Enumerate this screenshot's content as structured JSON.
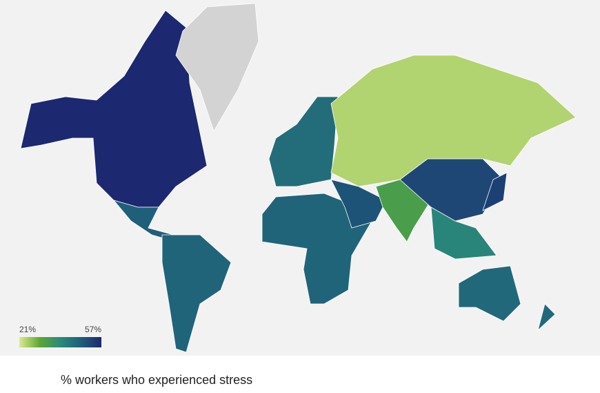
{
  "map": {
    "legend": {
      "min": {
        "value": 21,
        "label": "21%"
      },
      "max": {
        "value": 57,
        "label": "57%"
      },
      "colors": [
        "#dde98f",
        "#5aa833",
        "#2a8a7a",
        "#1f5f7a",
        "#1c2870"
      ]
    },
    "missing_color": "#d3d3d3",
    "regions": [
      57,
      null,
      48,
      47,
      45,
      24,
      47,
      50,
      33,
      52,
      40,
      53,
      46,
      46
    ],
    "caption": "% workers who experienced stress"
  }
}
